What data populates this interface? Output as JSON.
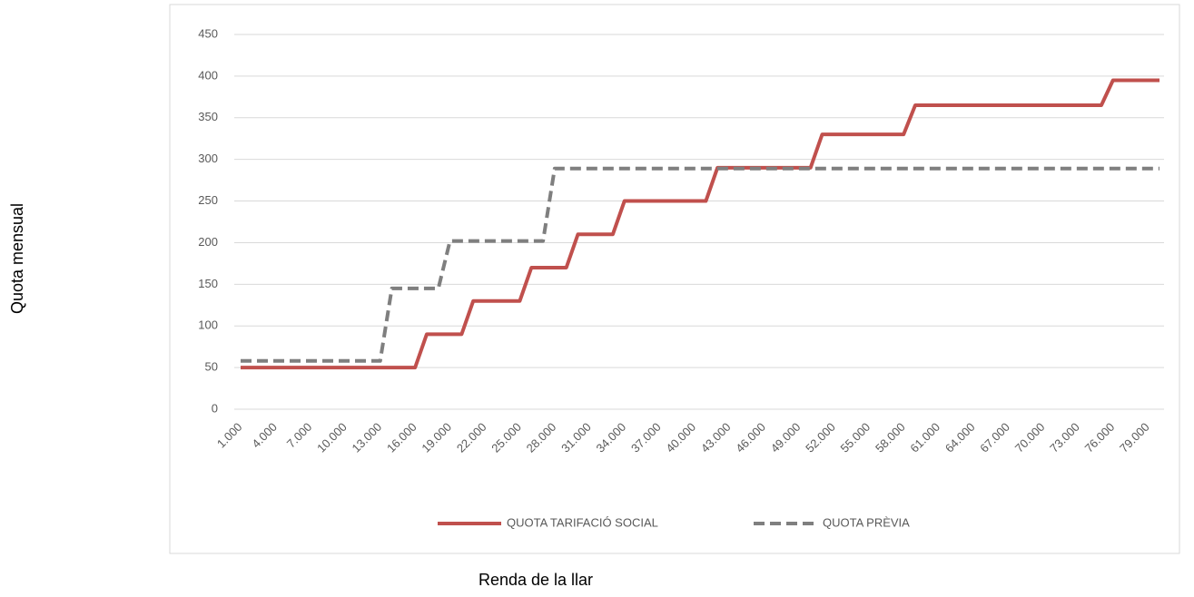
{
  "chart_data": {
    "type": "line",
    "x_label": "Renda de la llar",
    "y_label": "Quota mensual",
    "categories": [
      "1.000",
      null,
      null,
      "4.000",
      null,
      null,
      "7.000",
      null,
      null,
      "10.000",
      null,
      null,
      "13.000",
      null,
      null,
      "16.000",
      null,
      null,
      "19.000",
      null,
      null,
      "22.000",
      null,
      null,
      "25.000",
      null,
      null,
      "28.000",
      null,
      null,
      "31.000",
      null,
      null,
      "34.000",
      null,
      null,
      "37.000",
      null,
      null,
      "40.000",
      null,
      null,
      "43.000",
      null,
      null,
      "46.000",
      null,
      null,
      "49.000",
      null,
      null,
      "52.000",
      null,
      null,
      "55.000",
      null,
      null,
      "58.000",
      null,
      null,
      "61.000",
      null,
      null,
      "64.000",
      null,
      null,
      "67.000",
      null,
      null,
      "70.000",
      null,
      null,
      "73.000",
      null,
      null,
      "76.000",
      null,
      null,
      "79.000",
      null
    ],
    "series": [
      {
        "name": "QUOTA TARIFACIÓ SOCIAL",
        "color": "#c0504d",
        "dashed": false,
        "values": [
          50,
          50,
          50,
          50,
          50,
          50,
          50,
          50,
          50,
          50,
          50,
          50,
          50,
          50,
          50,
          50,
          90,
          90,
          90,
          90,
          130,
          130,
          130,
          130,
          130,
          170,
          170,
          170,
          170,
          210,
          210,
          210,
          210,
          250,
          250,
          250,
          250,
          250,
          250,
          250,
          250,
          290,
          290,
          290,
          290,
          290,
          290,
          290,
          290,
          290,
          330,
          330,
          330,
          330,
          330,
          330,
          330,
          330,
          365,
          365,
          365,
          365,
          365,
          365,
          365,
          365,
          365,
          365,
          365,
          365,
          365,
          365,
          365,
          365,
          365,
          395,
          395,
          395,
          395,
          395
        ]
      },
      {
        "name": "QUOTA PRÈVIA",
        "color": "#7f7f7f",
        "dashed": true,
        "values": [
          58,
          58,
          58,
          58,
          58,
          58,
          58,
          58,
          58,
          58,
          58,
          58,
          58,
          145,
          145,
          145,
          145,
          145,
          202,
          202,
          202,
          202,
          202,
          202,
          202,
          202,
          202,
          289,
          289,
          289,
          289,
          289,
          289,
          289,
          289,
          289,
          289,
          289,
          289,
          289,
          289,
          289,
          289,
          289,
          289,
          289,
          289,
          289,
          289,
          289,
          289,
          289,
          289,
          289,
          289,
          289,
          289,
          289,
          289,
          289,
          289,
          289,
          289,
          289,
          289,
          289,
          289,
          289,
          289,
          289,
          289,
          289,
          289,
          289,
          289,
          289,
          289,
          289,
          289,
          289
        ]
      }
    ],
    "ylim": [
      0,
      450
    ],
    "yticks": [
      0,
      50,
      100,
      150,
      200,
      250,
      300,
      350,
      400,
      450
    ],
    "grid": true,
    "legend": "bottom"
  }
}
